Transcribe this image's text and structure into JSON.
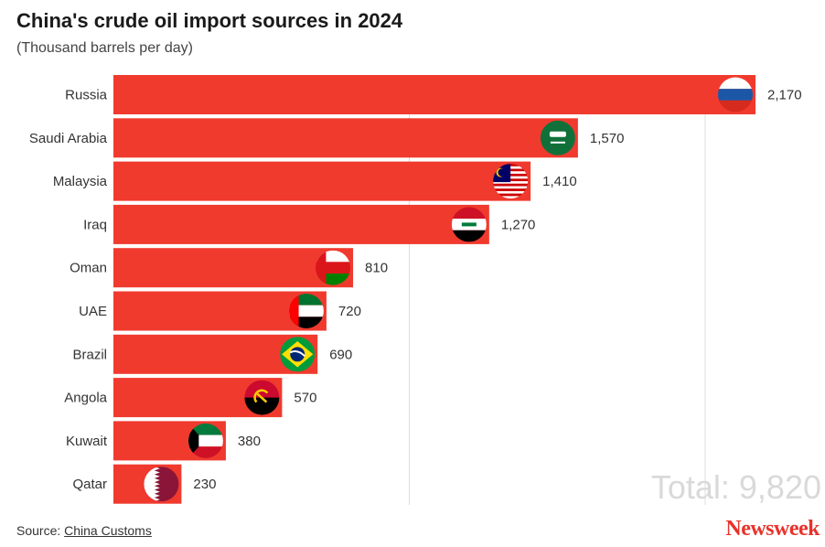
{
  "title": "China's crude oil import sources in 2024",
  "subtitle": "(Thousand barrels per day)",
  "total_label": "Total: 9,820",
  "source": {
    "prefix": "Source:",
    "link": "China Customs"
  },
  "brand": "Newsweek",
  "colors": {
    "bar": "#f03a2e",
    "grid": "#dddddd",
    "total_text": "#d9d9d9",
    "brand": "#e8322b"
  },
  "chart_data": {
    "type": "bar",
    "orientation": "horizontal",
    "categories": [
      "Russia",
      "Saudi Arabia",
      "Malaysia",
      "Iraq",
      "Oman",
      "UAE",
      "Brazil",
      "Angola",
      "Kuwait",
      "Qatar"
    ],
    "values": [
      2170,
      1570,
      1410,
      1270,
      810,
      720,
      690,
      570,
      380,
      230
    ],
    "value_labels": [
      "2,170",
      "1,570",
      "1,410",
      "1,270",
      "810",
      "720",
      "690",
      "570",
      "380",
      "230"
    ],
    "flag_icons": [
      "flag-russia-icon",
      "flag-saudi-arabia-icon",
      "flag-malaysia-icon",
      "flag-iraq-icon",
      "flag-oman-icon",
      "flag-uae-icon",
      "flag-brazil-icon",
      "flag-angola-icon",
      "flag-kuwait-icon",
      "flag-qatar-icon"
    ],
    "xlim": [
      0,
      2300
    ],
    "grid": true,
    "gridlines": [
      1000,
      2000
    ],
    "title": "China's crude oil import sources in 2024",
    "subtitle": "(Thousand barrels per day)"
  }
}
